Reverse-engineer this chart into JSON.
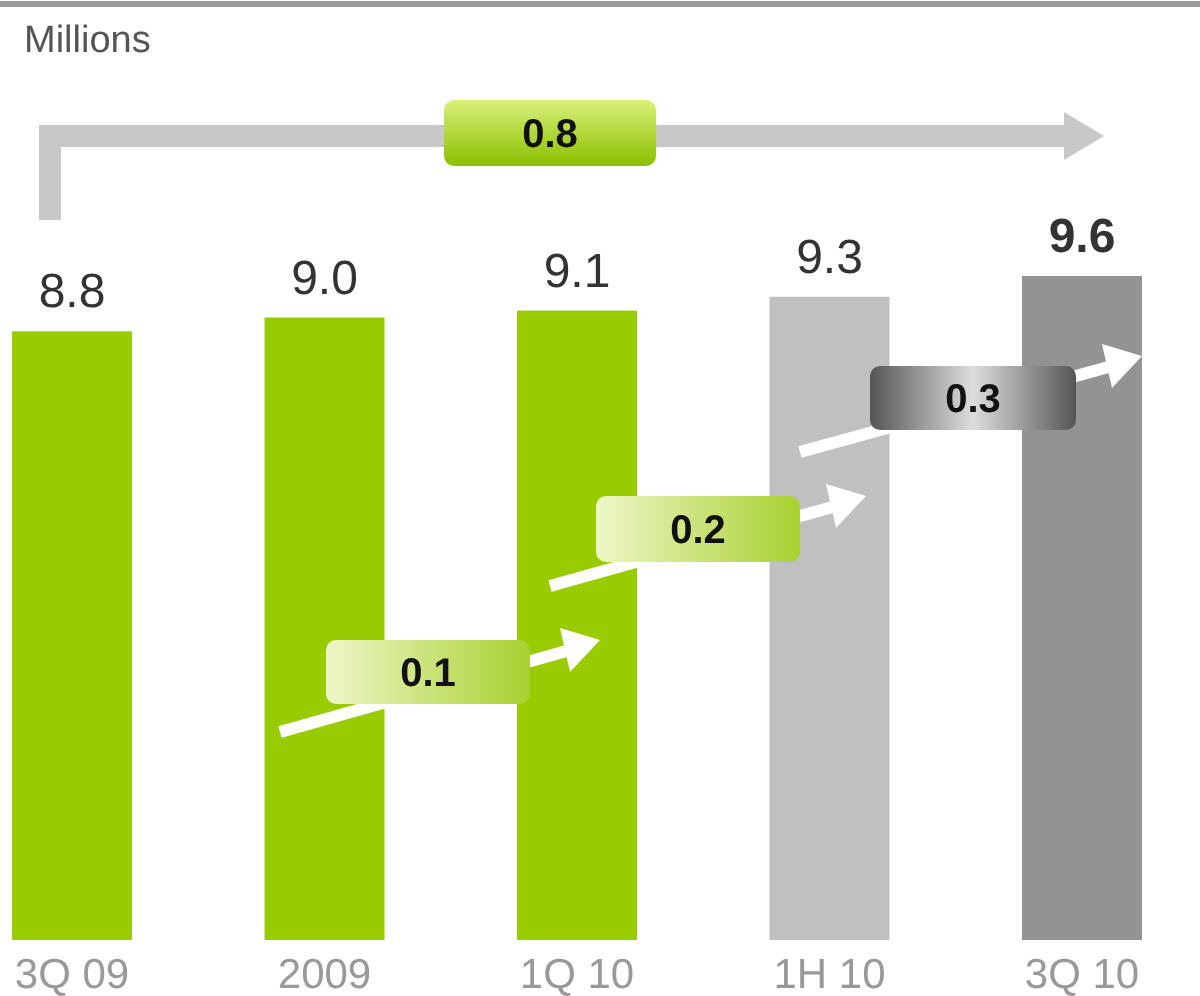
{
  "chart_data": {
    "type": "bar",
    "categories": [
      "3Q 09",
      "2009",
      "1Q 10",
      "1H 10",
      "3Q 10"
    ],
    "values": [
      8.8,
      9.0,
      9.1,
      9.3,
      9.6
    ],
    "colors": [
      "#99cc00",
      "#99cc00",
      "#99cc00",
      "#c0c0c0",
      "#939393"
    ],
    "value_labels": [
      "8.8",
      "9.0",
      "9.1",
      "9.3",
      "9.6"
    ],
    "annotations": [
      "Millions",
      "0.8",
      "0.1",
      "0.2",
      "0.3"
    ]
  }
}
